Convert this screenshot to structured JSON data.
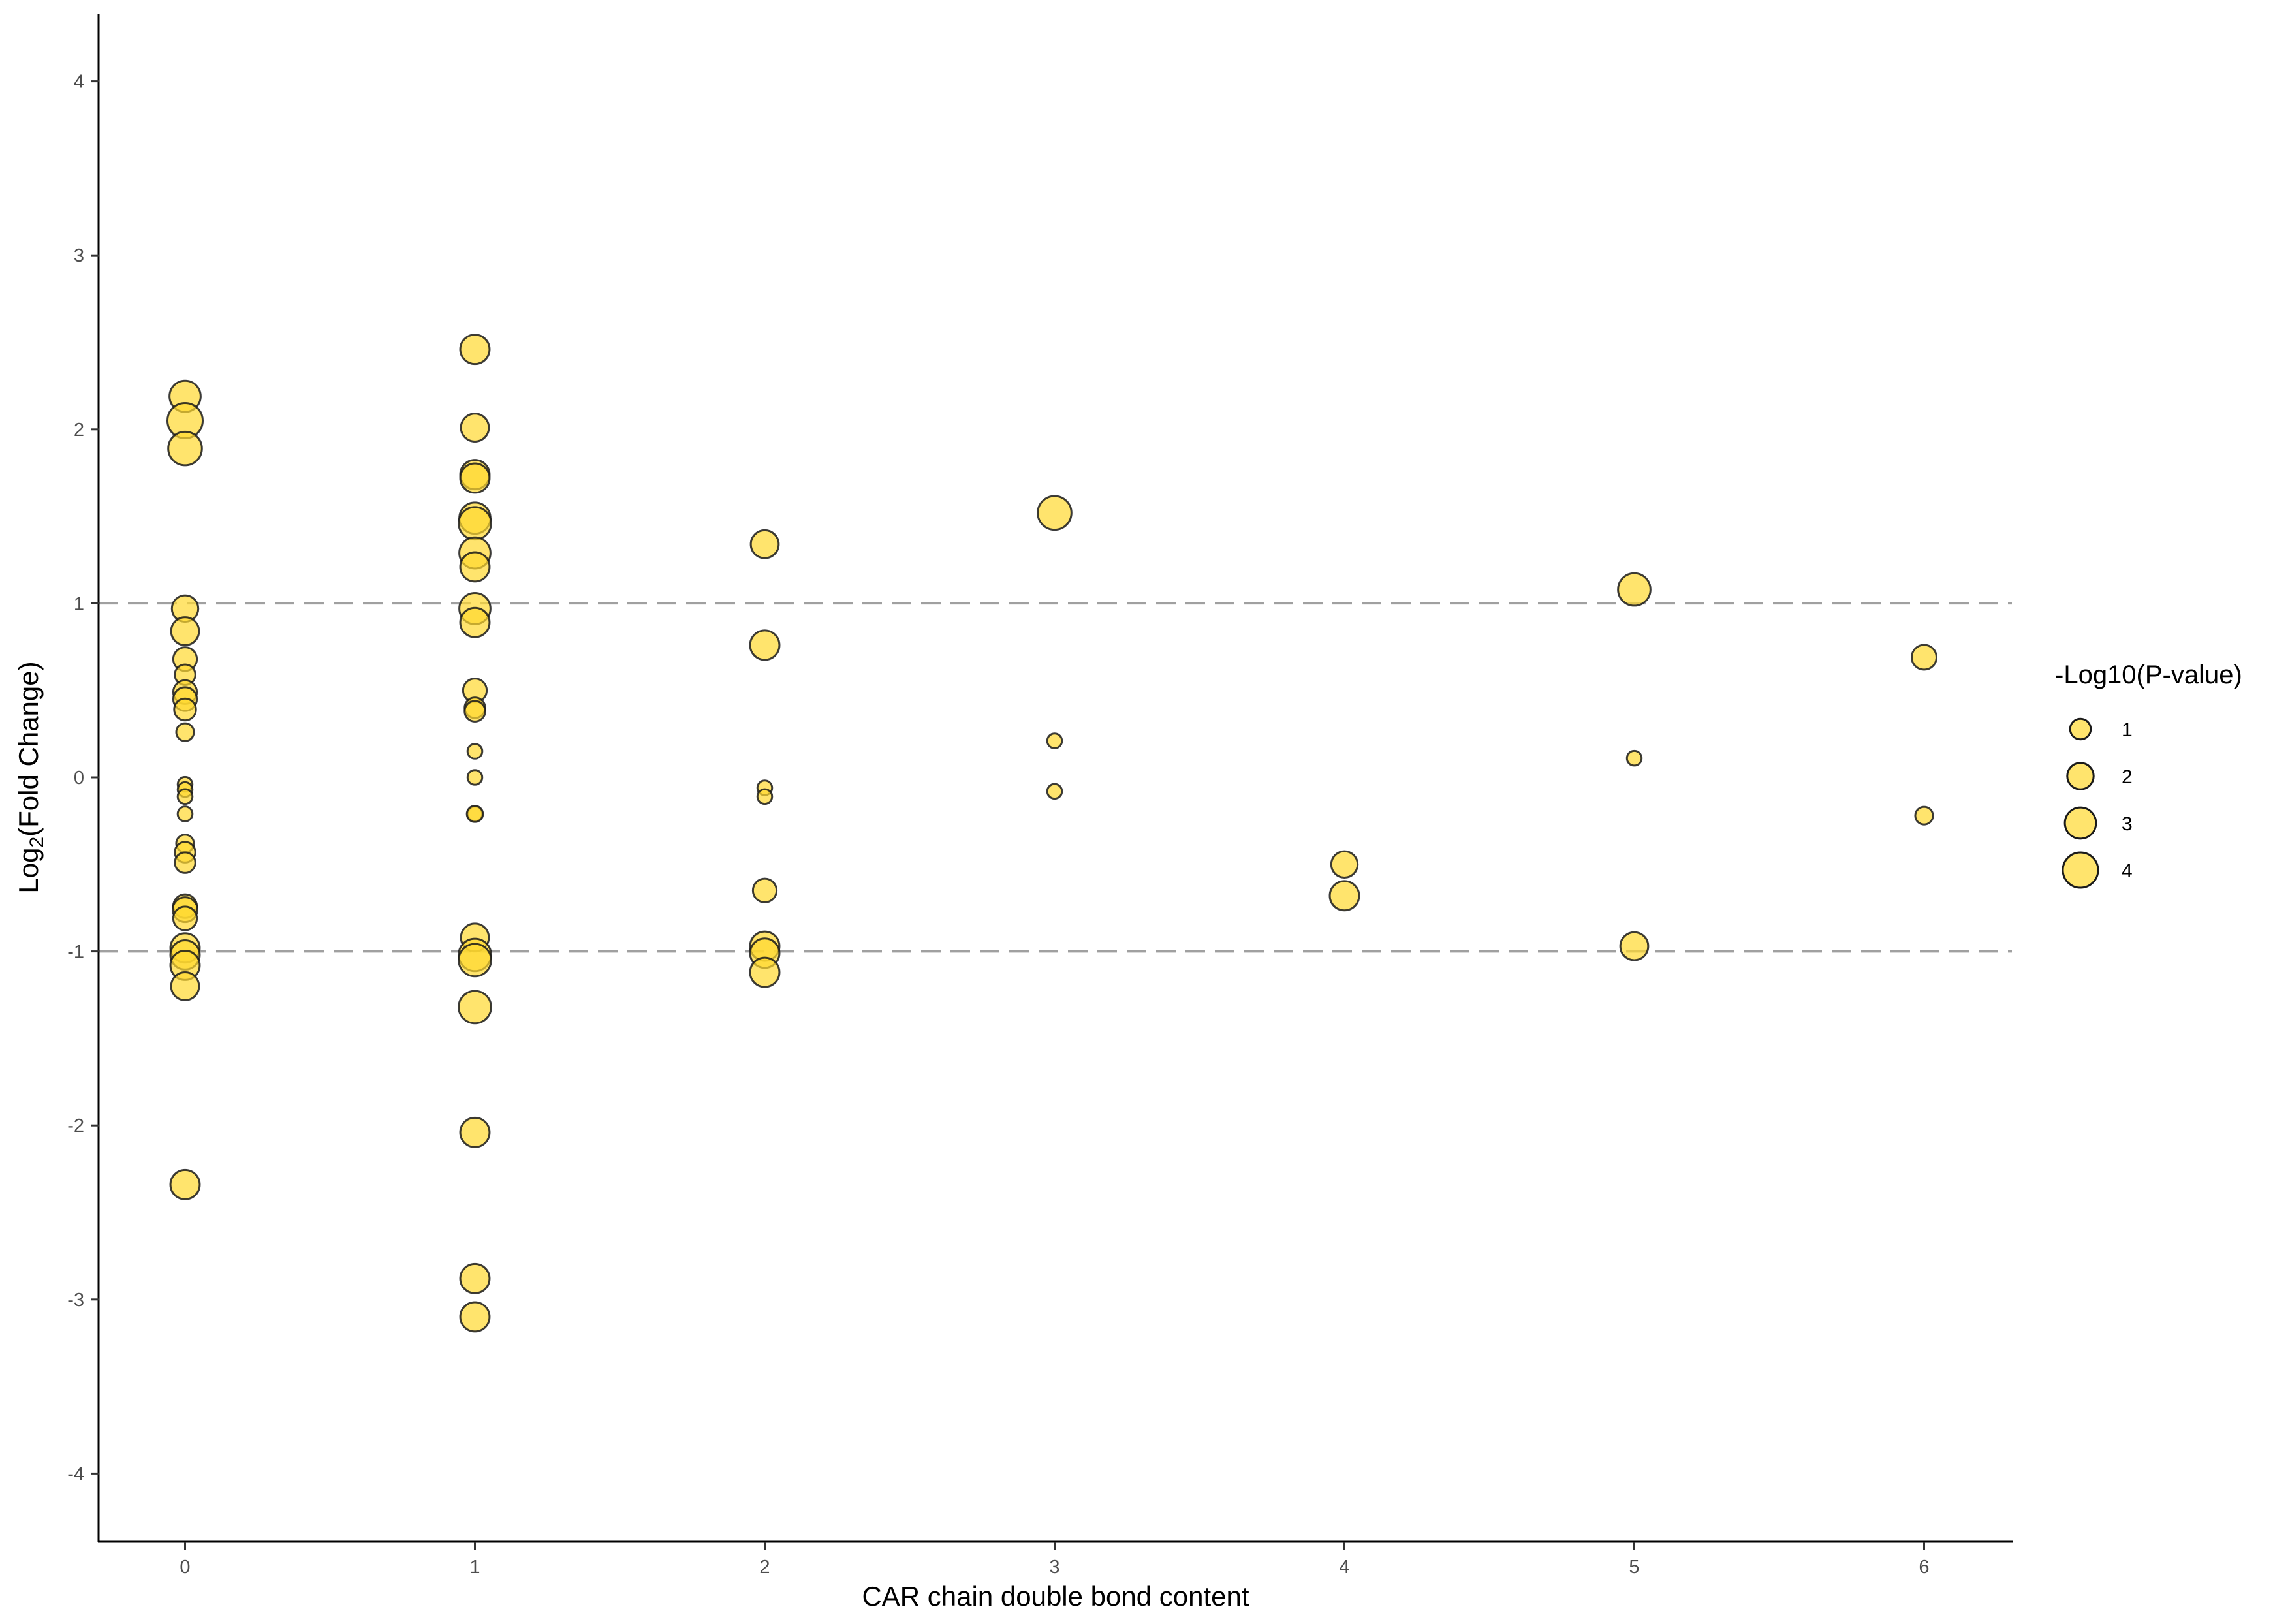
{
  "chart_data": {
    "type": "scatter",
    "title": "",
    "xlabel": "CAR chain double bond content",
    "ylabel_main": "Log",
    "ylabel_sub": "2",
    "ylabel_rest": "(Fold Change)",
    "xlim": [
      -0.3,
      6.3
    ],
    "ylim": [
      -4.4,
      4.4
    ],
    "x_ticks": [
      0,
      1,
      2,
      3,
      4,
      5,
      6
    ],
    "y_ticks": [
      4,
      3,
      2,
      1,
      0,
      -1,
      -2,
      -3,
      -4
    ],
    "x_tick_labels": [
      "0",
      "1",
      "2",
      "3",
      "4",
      "5",
      "6"
    ],
    "y_tick_labels": [
      "4",
      "3",
      "2",
      "1",
      "0",
      "-1",
      "-2",
      "-3",
      "-4"
    ],
    "reference_lines": [
      1,
      -1
    ],
    "grid": false,
    "point_color": "#FFD92F",
    "point_border": "#000000",
    "legend": {
      "title": "-Log10(P-value)",
      "placement": "right",
      "sizes": [
        1,
        2,
        3,
        4
      ],
      "labels": [
        "1",
        "2",
        "3",
        "4"
      ]
    },
    "points": [
      {
        "x": 0,
        "y": 2.19,
        "p": 3.0
      },
      {
        "x": 0,
        "y": 2.05,
        "p": 4.0
      },
      {
        "x": 0,
        "y": 1.89,
        "p": 3.6
      },
      {
        "x": 0,
        "y": 0.97,
        "p": 2.0
      },
      {
        "x": 0,
        "y": 0.84,
        "p": 2.3
      },
      {
        "x": 0,
        "y": 0.68,
        "p": 1.5
      },
      {
        "x": 0,
        "y": 0.59,
        "p": 1.0
      },
      {
        "x": 0,
        "y": 0.49,
        "p": 1.5
      },
      {
        "x": 0,
        "y": 0.45,
        "p": 1.5
      },
      {
        "x": 0,
        "y": 0.39,
        "p": 1.2
      },
      {
        "x": 0,
        "y": 0.26,
        "p": 0.6
      },
      {
        "x": 0,
        "y": -0.04,
        "p": 0.05
      },
      {
        "x": 0,
        "y": -0.07,
        "p": 0.1
      },
      {
        "x": 0,
        "y": -0.11,
        "p": 0.25
      },
      {
        "x": 0,
        "y": -0.21,
        "p": 0.25
      },
      {
        "x": 0,
        "y": -0.38,
        "p": 0.6
      },
      {
        "x": 0,
        "y": -0.43,
        "p": 1.0
      },
      {
        "x": 0,
        "y": -0.49,
        "p": 1.0
      },
      {
        "x": 0,
        "y": -0.74,
        "p": 1.5
      },
      {
        "x": 0,
        "y": -0.76,
        "p": 1.7
      },
      {
        "x": 0,
        "y": -0.81,
        "p": 1.5
      },
      {
        "x": 0,
        "y": -0.98,
        "p": 2.6
      },
      {
        "x": 0,
        "y": -1.02,
        "p": 2.6
      },
      {
        "x": 0,
        "y": -1.08,
        "p": 2.6
      },
      {
        "x": 0,
        "y": -1.2,
        "p": 2.3
      },
      {
        "x": 0,
        "y": -2.34,
        "p": 2.6
      },
      {
        "x": 1,
        "y": 2.46,
        "p": 2.6
      },
      {
        "x": 1,
        "y": 2.01,
        "p": 2.3
      },
      {
        "x": 1,
        "y": 1.74,
        "p": 2.6
      },
      {
        "x": 1,
        "y": 1.72,
        "p": 2.6
      },
      {
        "x": 1,
        "y": 1.49,
        "p": 3.0
      },
      {
        "x": 1,
        "y": 1.46,
        "p": 3.3
      },
      {
        "x": 1,
        "y": 1.29,
        "p": 3.0
      },
      {
        "x": 1,
        "y": 1.21,
        "p": 2.6
      },
      {
        "x": 1,
        "y": 0.97,
        "p": 3.0
      },
      {
        "x": 1,
        "y": 0.89,
        "p": 2.6
      },
      {
        "x": 1,
        "y": 0.5,
        "p": 1.5
      },
      {
        "x": 1,
        "y": 0.4,
        "p": 1.0
      },
      {
        "x": 1,
        "y": 0.38,
        "p": 1.0
      },
      {
        "x": 1,
        "y": 0.15,
        "p": 0.25
      },
      {
        "x": 1,
        "y": 0.0,
        "p": 0.01
      },
      {
        "x": 1,
        "y": -0.21,
        "p": 0.25
      },
      {
        "x": 1,
        "y": -0.21,
        "p": 0.4
      },
      {
        "x": 1,
        "y": -0.92,
        "p": 2.3
      },
      {
        "x": 1,
        "y": -1.02,
        "p": 3.3
      },
      {
        "x": 1,
        "y": -1.05,
        "p": 3.3
      },
      {
        "x": 1,
        "y": -1.32,
        "p": 3.3
      },
      {
        "x": 1,
        "y": -2.04,
        "p": 2.6
      },
      {
        "x": 1,
        "y": -2.88,
        "p": 2.6
      },
      {
        "x": 1,
        "y": -3.1,
        "p": 2.6
      },
      {
        "x": 2,
        "y": 1.34,
        "p": 2.3
      },
      {
        "x": 2,
        "y": 0.76,
        "p": 2.6
      },
      {
        "x": 2,
        "y": -0.06,
        "p": 0.1
      },
      {
        "x": 2,
        "y": -0.11,
        "p": 0.1
      },
      {
        "x": 2,
        "y": -0.65,
        "p": 1.5
      },
      {
        "x": 2,
        "y": -0.97,
        "p": 2.6
      },
      {
        "x": 2,
        "y": -1.01,
        "p": 2.6
      },
      {
        "x": 2,
        "y": -1.12,
        "p": 2.6
      },
      {
        "x": 3,
        "y": 1.52,
        "p": 3.6
      },
      {
        "x": 3,
        "y": 0.21,
        "p": 0.25
      },
      {
        "x": 3,
        "y": -0.08,
        "p": 0.1
      },
      {
        "x": 4,
        "y": -0.5,
        "p": 2.0
      },
      {
        "x": 4,
        "y": -0.68,
        "p": 2.6
      },
      {
        "x": 5,
        "y": 1.08,
        "p": 3.3
      },
      {
        "x": 5,
        "y": 0.11,
        "p": 0.2
      },
      {
        "x": 5,
        "y": -0.97,
        "p": 2.3
      },
      {
        "x": 6,
        "y": 0.69,
        "p": 1.7
      },
      {
        "x": 6,
        "y": -0.22,
        "p": 0.6
      }
    ]
  }
}
